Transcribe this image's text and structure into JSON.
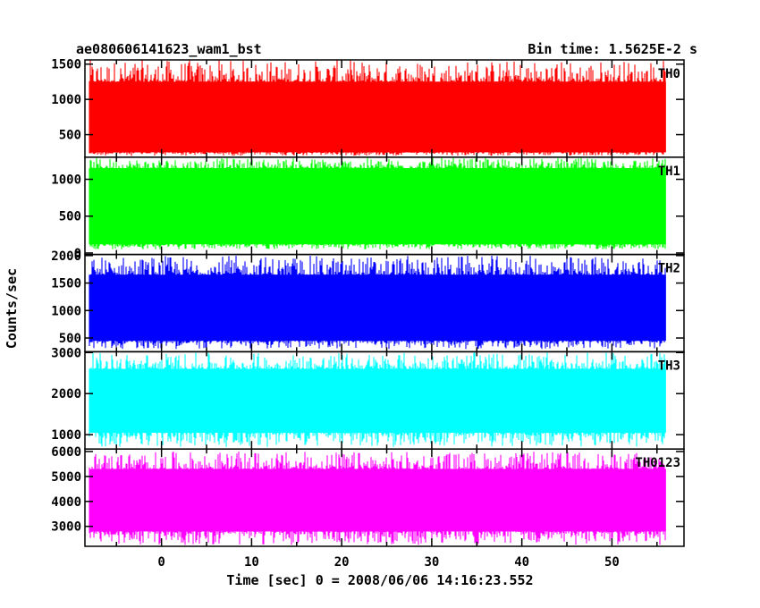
{
  "header": {
    "title": "ae080606141623_wam1_bst",
    "bin_time": "Bin time: 1.5625E-2 s"
  },
  "chart_data": {
    "type": "line",
    "xlabel": "Time [sec] 0 = 2008/06/06 14:16:23.552",
    "ylabel": "Counts/sec",
    "xlim": [
      -8.5,
      58
    ],
    "x_ticks": [
      0,
      10,
      20,
      30,
      40,
      50
    ],
    "data_x_range": [
      -8,
      56
    ],
    "panels": [
      {
        "name": "TH0",
        "color": "#ff0000",
        "ylim": [
          180,
          1560
        ],
        "y_ticks": [
          500,
          1000,
          1500
        ],
        "band": [
          250,
          1250
        ],
        "mean": 720,
        "peak": 1560,
        "trough": 200
      },
      {
        "name": "TH1",
        "color": "#00ff00",
        "ylim": [
          -20,
          1300
        ],
        "y_ticks": [
          0,
          500,
          1000
        ],
        "band": [
          120,
          1150
        ],
        "mean": 620,
        "peak": 1290,
        "trough": 50
      },
      {
        "name": "TH2",
        "color": "#0000ff",
        "ylim": [
          250,
          2020
        ],
        "y_ticks": [
          500,
          1000,
          1500,
          2000
        ],
        "band": [
          450,
          1650
        ],
        "mean": 1000,
        "peak": 2000,
        "trough": 300
      },
      {
        "name": "TH3",
        "color": "#00ffff",
        "ylim": [
          650,
          3020
        ],
        "y_ticks": [
          1000,
          2000,
          3000
        ],
        "band": [
          1050,
          2600
        ],
        "mean": 1800,
        "peak": 3000,
        "trough": 700
      },
      {
        "name": "TH0123",
        "color": "#ff00ff",
        "ylim": [
          2200,
          6100
        ],
        "y_ticks": [
          3000,
          4000,
          5000,
          6000
        ],
        "band": [
          2800,
          5300
        ],
        "mean": 4000,
        "peak": 6000,
        "trough": 2250
      }
    ]
  }
}
